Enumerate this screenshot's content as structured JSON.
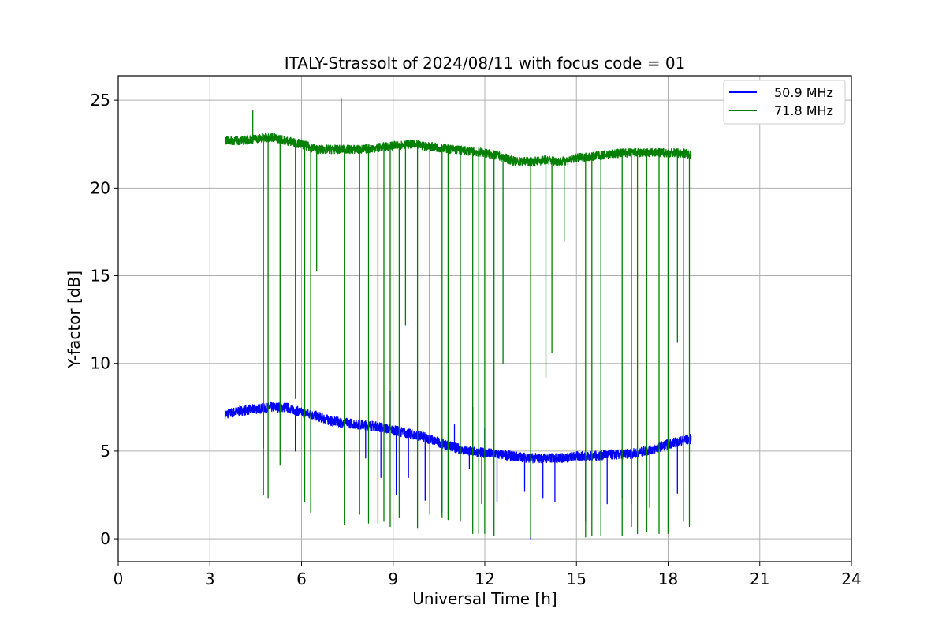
{
  "chart_data": {
    "type": "line",
    "title": "ITALY-Strassolt of 2024/08/11 with focus code = 01",
    "xlabel": "Universal Time [h]",
    "ylabel": "Y-factor [dB]",
    "xlim": [
      0,
      24
    ],
    "ylim": [
      -1.3,
      26.4
    ],
    "x_ticks": [
      0,
      3,
      6,
      9,
      12,
      15,
      18,
      21,
      24
    ],
    "y_ticks": [
      0,
      5,
      10,
      15,
      20,
      25
    ],
    "grid": true,
    "legend_position": "top-right",
    "series": [
      {
        "name": "50.9 MHz",
        "color": "#0000ff",
        "x": [
          3.5,
          4.0,
          4.5,
          5.0,
          5.5,
          6.0,
          6.5,
          7.0,
          7.5,
          8.0,
          8.5,
          9.0,
          9.5,
          10.0,
          10.5,
          11.0,
          11.5,
          12.0,
          12.5,
          13.0,
          13.5,
          14.0,
          14.5,
          15.0,
          15.5,
          16.0,
          16.5,
          17.0,
          17.5,
          18.0,
          18.5,
          18.75
        ],
        "y": [
          7.1,
          7.3,
          7.4,
          7.5,
          7.5,
          7.2,
          7.0,
          6.7,
          6.6,
          6.5,
          6.4,
          6.2,
          6.0,
          5.8,
          5.5,
          5.2,
          5.0,
          4.9,
          4.8,
          4.7,
          4.6,
          4.6,
          4.6,
          4.7,
          4.7,
          4.8,
          4.8,
          4.9,
          5.1,
          5.4,
          5.6,
          5.7
        ],
        "dips": [
          [
            4.75,
            5.2
          ],
          [
            5.8,
            5.0
          ],
          [
            6.3,
            4.8
          ],
          [
            7.4,
            4.0
          ],
          [
            8.1,
            4.6
          ],
          [
            8.6,
            3.5
          ],
          [
            9.1,
            2.5
          ],
          [
            9.5,
            3.5
          ],
          [
            10.05,
            2.2
          ],
          [
            10.6,
            1.5
          ],
          [
            11.5,
            4.0
          ],
          [
            11.9,
            2.0
          ],
          [
            12.4,
            2.1
          ],
          [
            13.3,
            2.7
          ],
          [
            13.5,
            0.0
          ],
          [
            13.9,
            2.3
          ],
          [
            14.3,
            2.1
          ],
          [
            15.3,
            1.0
          ],
          [
            16.0,
            2.0
          ],
          [
            16.5,
            2.3
          ],
          [
            16.8,
            2.0
          ],
          [
            17.4,
            1.8
          ],
          [
            18.3,
            2.6
          ]
        ],
        "spikes": [
          [
            8.9,
            8.4
          ],
          [
            11.0,
            6.5
          ],
          [
            11.6,
            7.5
          ],
          [
            12.0,
            6.3
          ]
        ]
      },
      {
        "name": "71.8 MHz",
        "color": "#008000",
        "x": [
          3.5,
          4.0,
          4.5,
          5.0,
          5.5,
          6.0,
          6.5,
          7.0,
          7.5,
          8.0,
          8.5,
          9.0,
          9.5,
          10.0,
          10.5,
          11.0,
          11.5,
          12.0,
          12.5,
          13.0,
          13.5,
          14.0,
          14.5,
          15.0,
          15.5,
          16.0,
          16.5,
          17.0,
          17.5,
          18.0,
          18.5,
          18.75
        ],
        "y": [
          22.7,
          22.7,
          22.8,
          22.9,
          22.7,
          22.5,
          22.2,
          22.2,
          22.2,
          22.2,
          22.3,
          22.4,
          22.5,
          22.4,
          22.3,
          22.2,
          22.1,
          22.0,
          21.8,
          21.5,
          21.5,
          21.6,
          21.5,
          21.7,
          21.8,
          21.9,
          22.0,
          22.0,
          22.0,
          22.0,
          22.0,
          21.9
        ],
        "dips": [
          [
            4.75,
            2.5
          ],
          [
            4.9,
            2.3
          ],
          [
            5.3,
            4.2
          ],
          [
            5.8,
            8.0
          ],
          [
            6.1,
            2.1
          ],
          [
            6.3,
            1.5
          ],
          [
            6.5,
            15.3
          ],
          [
            7.4,
            0.8
          ],
          [
            7.9,
            1.4
          ],
          [
            8.2,
            0.9
          ],
          [
            8.5,
            0.9
          ],
          [
            8.7,
            1.0
          ],
          [
            8.9,
            0.7
          ],
          [
            9.2,
            1.2
          ],
          [
            9.4,
            12.2
          ],
          [
            9.8,
            0.6
          ],
          [
            10.2,
            1.4
          ],
          [
            10.6,
            1.2
          ],
          [
            10.8,
            1.1
          ],
          [
            11.2,
            1.0
          ],
          [
            11.6,
            0.3
          ],
          [
            11.8,
            0.3
          ],
          [
            12.0,
            0.3
          ],
          [
            12.3,
            0.2
          ],
          [
            12.6,
            10.0
          ],
          [
            13.5,
            0.1
          ],
          [
            14.0,
            9.2
          ],
          [
            14.2,
            10.6
          ],
          [
            14.6,
            17.0
          ],
          [
            15.3,
            0.1
          ],
          [
            15.5,
            0.2
          ],
          [
            15.8,
            0.2
          ],
          [
            16.5,
            0.2
          ],
          [
            16.8,
            0.7
          ],
          [
            17.0,
            0.3
          ],
          [
            17.3,
            0.4
          ],
          [
            17.7,
            0.3
          ],
          [
            18.0,
            0.3
          ],
          [
            18.3,
            11.2
          ],
          [
            18.5,
            1.0
          ],
          [
            18.7,
            0.7
          ]
        ],
        "spikes": [
          [
            4.4,
            24.4
          ],
          [
            7.3,
            25.1
          ]
        ]
      }
    ]
  }
}
